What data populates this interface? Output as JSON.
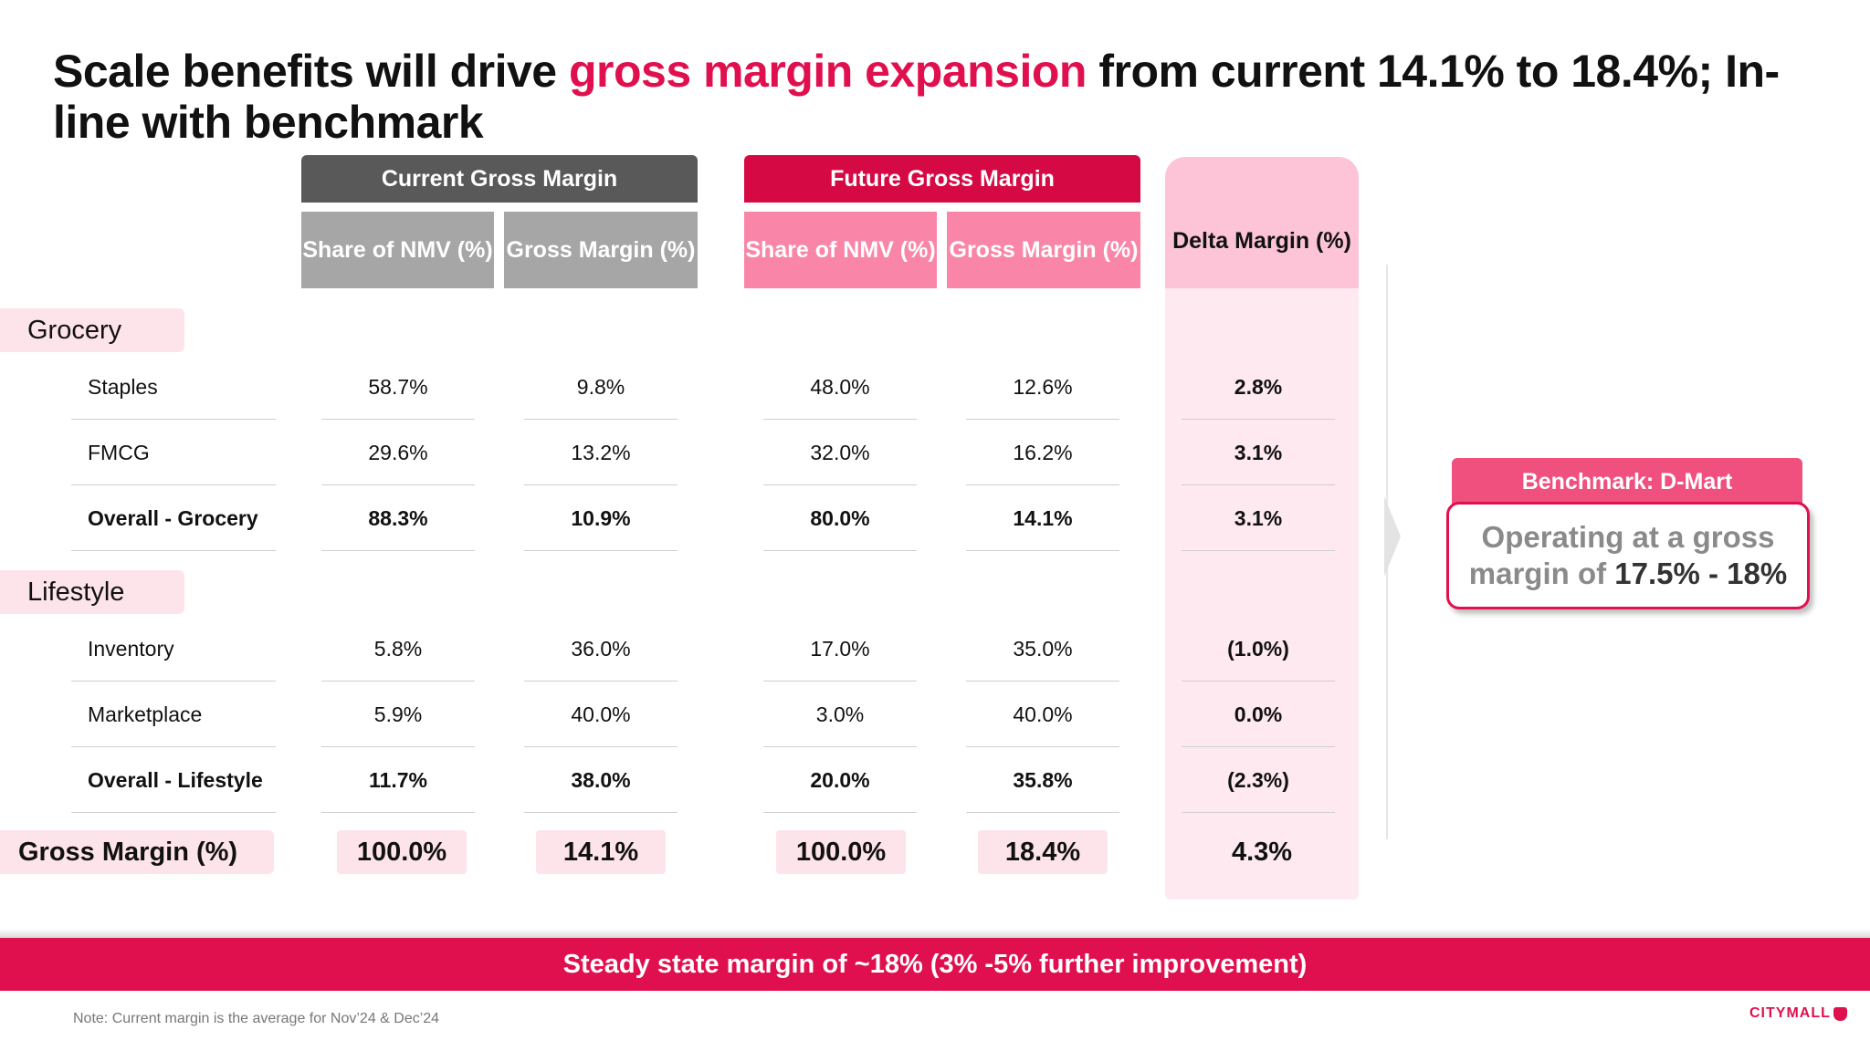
{
  "title": {
    "part1": "Scale benefits will drive ",
    "highlight": "gross margin expansion",
    "part2": " from current 14.1% to 18.4%; In-line with benchmark"
  },
  "groups": {
    "current": "Current Gross Margin",
    "future": "Future Gross Margin"
  },
  "columns": {
    "cur_share": "Share of NMV (%)",
    "cur_gm": "Gross Margin (%)",
    "fut_share": "Share of NMV (%)",
    "fut_gm": "Gross Margin (%)",
    "delta": "Delta Margin (%)"
  },
  "sections": {
    "grocery": "Grocery",
    "lifestyle": "Lifestyle"
  },
  "rows": [
    {
      "label": "Staples",
      "cur_share": "58.7%",
      "cur_gm": "9.8%",
      "fut_share": "48.0%",
      "fut_gm": "12.6%",
      "delta": "2.8%"
    },
    {
      "label": "FMCG",
      "cur_share": "29.6%",
      "cur_gm": "13.2%",
      "fut_share": "32.0%",
      "fut_gm": "16.2%",
      "delta": "3.1%"
    },
    {
      "label": "Overall - Grocery",
      "cur_share": "88.3%",
      "cur_gm": "10.9%",
      "fut_share": "80.0%",
      "fut_gm": "14.1%",
      "delta": "3.1%"
    },
    {
      "label": "Inventory",
      "cur_share": "5.8%",
      "cur_gm": "36.0%",
      "fut_share": "17.0%",
      "fut_gm": "35.0%",
      "delta": "(1.0%)"
    },
    {
      "label": "Marketplace",
      "cur_share": "5.9%",
      "cur_gm": "40.0%",
      "fut_share": "3.0%",
      "fut_gm": "40.0%",
      "delta": "0.0%"
    },
    {
      "label": "Overall - Lifestyle",
      "cur_share": "11.7%",
      "cur_gm": "38.0%",
      "fut_share": "20.0%",
      "fut_gm": "35.8%",
      "delta": "(2.3%)"
    }
  ],
  "total": {
    "label": "Gross Margin (%)",
    "cur_share": "100.0%",
    "cur_gm": "14.1%",
    "fut_share": "100.0%",
    "fut_gm": "18.4%",
    "delta": "4.3%"
  },
  "benchmark": {
    "title": "Benchmark: D-Mart",
    "line1": "Operating at a gross",
    "line2_prefix": "margin of ",
    "line2_value": "17.5% - 18%"
  },
  "banner": "Steady state margin of ~18% (3% -5% further improvement)",
  "note": "Note: Current margin is the average for Nov’24 & Dec’24",
  "logo": "CITYMALL",
  "colors": {
    "accent": "#e0104f",
    "current_group": "#595959",
    "current_col": "#a6a6a6",
    "future_col": "#f986a8",
    "delta_col": "#fcc4d6",
    "row_highlight": "#fde4ea"
  }
}
